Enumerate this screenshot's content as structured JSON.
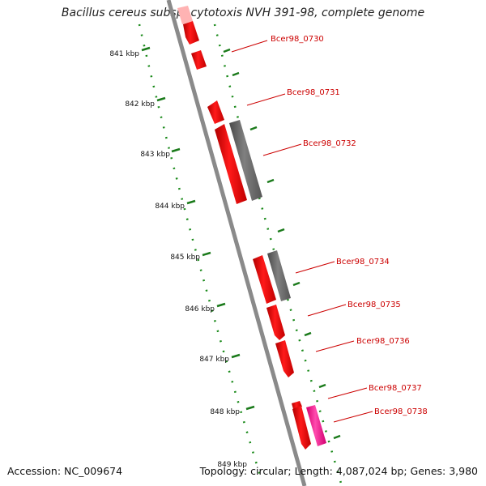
{
  "title": "Bacillus cereus subsp. cytotoxis NVH 391-98, complete genome",
  "footer": {
    "accession": "Accession: NC_009674",
    "summary": "Topology: circular; Length: 4,087,024 bp; Genes: 3,980"
  },
  "kbp_labels": [
    "841 kbp",
    "842 kbp",
    "843 kbp",
    "844 kbp",
    "845 kbp",
    "846 kbp",
    "847 kbp",
    "848 kbp",
    "849 kbp"
  ],
  "gene_labels": [
    "Bcer98_0730",
    "Bcer98_0731",
    "Bcer98_0732",
    "Bcer98_0734",
    "Bcer98_0735",
    "Bcer98_0736",
    "Bcer98_0737",
    "Bcer98_0738"
  ],
  "colors": {
    "cds": "#ff0000",
    "cds_light": "#ffb3b3",
    "other_strand": "#6e6e6e",
    "pink": "#ff2d9b",
    "backbone": "#8c8c8c",
    "ticks": "#1a8a1a",
    "label": "#cc0000"
  }
}
